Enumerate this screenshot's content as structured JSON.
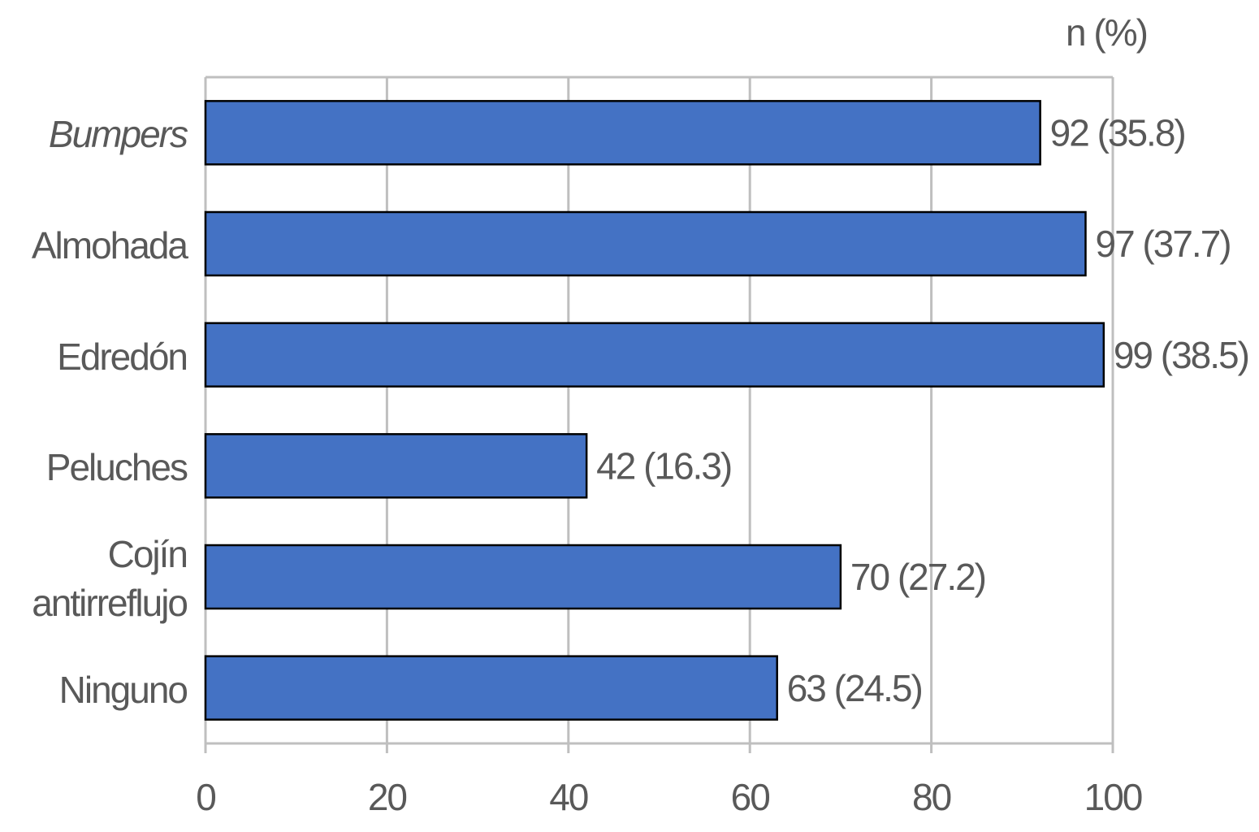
{
  "chart_data": {
    "type": "bar",
    "orientation": "horizontal",
    "axis_title": "n (%)",
    "categories": [
      "Bumpers",
      "Almohada",
      "Edredón",
      "Peluches",
      "Cojín antirreflujo",
      "Ninguno"
    ],
    "values": [
      92,
      97,
      99,
      42,
      70,
      63
    ],
    "value_labels": [
      "92 (35.8)",
      "97 (37.7)",
      "99 (38.5)",
      "42 (16.3)",
      "70 (27.2)",
      "63 (24.5)"
    ],
    "color": "#4472c4",
    "xlim": [
      0,
      100
    ],
    "xticks": [
      0,
      20,
      40,
      60,
      80,
      100
    ],
    "grid": true
  }
}
